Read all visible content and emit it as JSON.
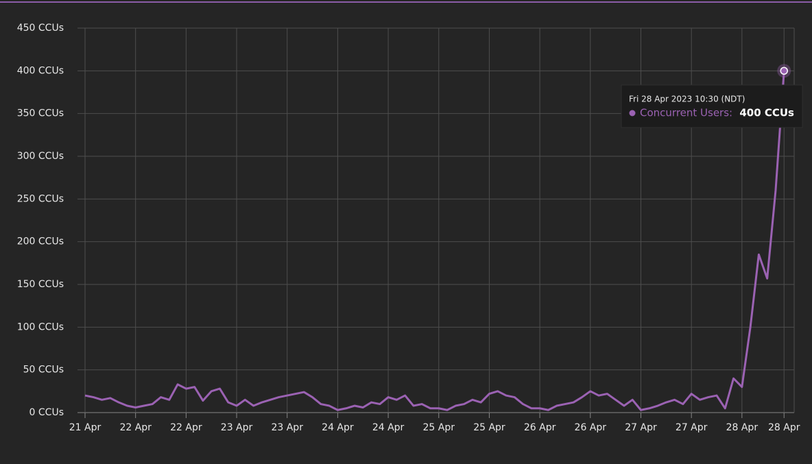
{
  "chart_data": {
    "type": "line",
    "categories": [
      "21 Apr",
      null,
      null,
      null,
      null,
      null,
      "22 Apr",
      null,
      null,
      null,
      null,
      null,
      "22 Apr",
      null,
      null,
      null,
      null,
      null,
      "23 Apr",
      null,
      null,
      null,
      null,
      null,
      "23 Apr",
      null,
      null,
      null,
      null,
      null,
      "24 Apr",
      null,
      null,
      null,
      null,
      null,
      "24 Apr",
      null,
      null,
      null,
      null,
      null,
      "25 Apr",
      null,
      null,
      null,
      null,
      null,
      "25 Apr",
      null,
      null,
      null,
      null,
      null,
      "26 Apr",
      null,
      null,
      null,
      null,
      null,
      "26 Apr",
      null,
      null,
      null,
      null,
      null,
      "27 Apr",
      null,
      null,
      null,
      null,
      null,
      "27 Apr",
      null,
      null,
      null,
      null,
      null,
      "28 Apr",
      null,
      null,
      null,
      null,
      "28 Apr"
    ],
    "series": [
      {
        "name": "Concurrent Users",
        "color": "#9b62b3",
        "values": [
          20,
          18,
          15,
          17,
          12,
          8,
          6,
          8,
          10,
          18,
          15,
          33,
          28,
          30,
          14,
          25,
          28,
          12,
          8,
          15,
          8,
          12,
          15,
          18,
          20,
          22,
          24,
          18,
          10,
          8,
          3,
          5,
          8,
          6,
          12,
          10,
          18,
          15,
          20,
          8,
          10,
          5,
          5,
          3,
          8,
          10,
          15,
          12,
          22,
          25,
          20,
          18,
          10,
          5,
          5,
          3,
          8,
          10,
          12,
          18,
          25,
          20,
          22,
          15,
          8,
          15,
          3,
          5,
          8,
          12,
          15,
          10,
          22,
          15,
          18,
          20,
          5,
          40,
          30,
          100,
          185,
          157,
          260,
          400
        ]
      }
    ],
    "ylim": [
      0,
      450
    ],
    "yticks": [
      {
        "value": 0,
        "label": "0 CCUs"
      },
      {
        "value": 50,
        "label": "50 CCUs"
      },
      {
        "value": 100,
        "label": "100 CCUs"
      },
      {
        "value": 150,
        "label": "150 CCUs"
      },
      {
        "value": 200,
        "label": "200 CCUs"
      },
      {
        "value": 250,
        "label": "250 CCUs"
      },
      {
        "value": 300,
        "label": "300 CCUs"
      },
      {
        "value": 350,
        "label": "350 CCUs"
      },
      {
        "value": 400,
        "label": "400 CCUs"
      },
      {
        "value": 450,
        "label": "450 CCUs"
      }
    ],
    "grid": true,
    "tooltip": {
      "title": "Fri 28 Apr 2023 10:30 (NDT)",
      "label": "Concurrent Users:",
      "value_label": "400 CCUs"
    }
  }
}
